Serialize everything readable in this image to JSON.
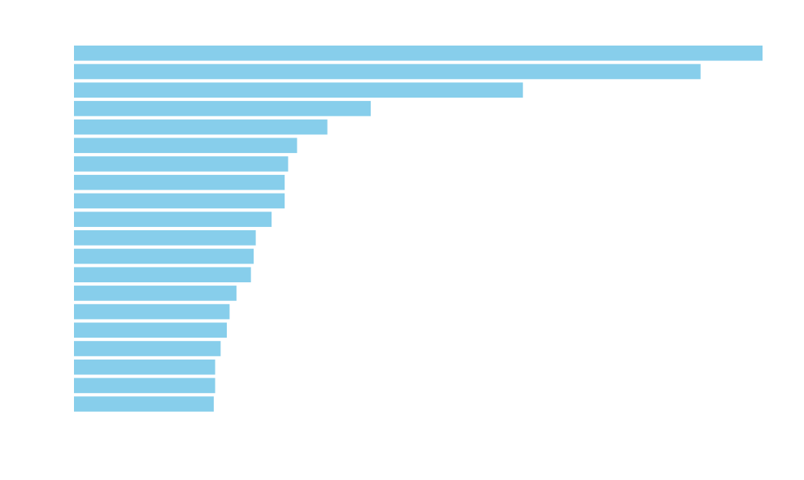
{
  "chart_data": {
    "type": "bar",
    "orientation": "horizontal",
    "title": "",
    "xlabel": "",
    "ylabel": "",
    "xlim": [
      0,
      100
    ],
    "grid": false,
    "legend": "none",
    "bar_color": "#87CEEB",
    "background_color": "#FFFFFF",
    "values": [
      100,
      91,
      65.2,
      43.1,
      36.8,
      32.4,
      31.1,
      30.6,
      30.6,
      28.7,
      26.4,
      26.1,
      25.7,
      23.6,
      22.6,
      22.2,
      21.3,
      20.5,
      20.5,
      20.3
    ]
  }
}
